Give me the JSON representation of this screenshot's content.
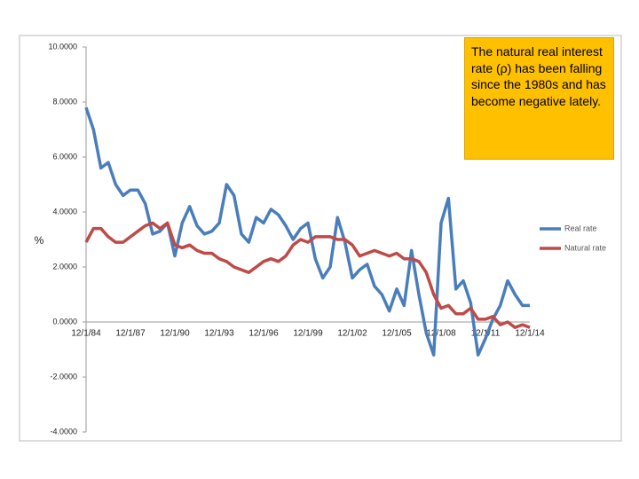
{
  "chart_data": {
    "type": "line",
    "annotation": "The natural real interest rate (ρ) has been falling since the 1980s and has become negative lately.",
    "y_label": "%",
    "categories": [
      "12/1/84",
      null,
      null,
      null,
      null,
      null,
      "12/1/87",
      null,
      null,
      null,
      null,
      null,
      "12/1/90",
      null,
      null,
      null,
      null,
      null,
      "12/1/93",
      null,
      null,
      null,
      null,
      null,
      "12/1/96",
      null,
      null,
      null,
      null,
      null,
      "12/1/99",
      null,
      null,
      null,
      null,
      null,
      "12/1/02",
      null,
      null,
      null,
      null,
      null,
      "12/1/05",
      null,
      null,
      null,
      null,
      null,
      "12/1/08",
      null,
      null,
      null,
      null,
      null,
      "12/1/11",
      null,
      null,
      null,
      null,
      null,
      "12/1/14"
    ],
    "series": [
      {
        "name": "Real rate",
        "color": "#4a7ebb",
        "values": [
          7.8,
          7.0,
          5.6,
          5.8,
          5.0,
          4.6,
          4.8,
          4.8,
          4.3,
          3.2,
          3.3,
          3.6,
          2.4,
          3.6,
          4.2,
          3.5,
          3.2,
          3.3,
          3.6,
          5.0,
          4.6,
          3.2,
          2.9,
          3.8,
          3.6,
          4.1,
          3.9,
          3.5,
          3.0,
          3.4,
          3.6,
          2.3,
          1.6,
          2.0,
          3.8,
          2.9,
          1.6,
          1.9,
          2.1,
          1.3,
          1.0,
          0.4,
          1.2,
          0.6,
          2.6,
          1.0,
          -0.4,
          -1.2,
          3.6,
          4.5,
          1.2,
          1.5,
          0.7,
          -1.2,
          -0.6,
          0.1,
          0.6,
          1.5,
          1.0,
          0.6,
          0.6
        ]
      },
      {
        "name": "Natural rate",
        "color": "#be4b48",
        "values": [
          2.9,
          3.4,
          3.4,
          3.1,
          2.9,
          2.9,
          3.1,
          3.3,
          3.5,
          3.6,
          3.4,
          3.6,
          2.8,
          2.7,
          2.8,
          2.6,
          2.5,
          2.5,
          2.3,
          2.2,
          2.0,
          1.9,
          1.8,
          2.0,
          2.2,
          2.3,
          2.2,
          2.4,
          2.8,
          3.0,
          2.9,
          3.1,
          3.1,
          3.1,
          3.0,
          3.0,
          2.8,
          2.4,
          2.5,
          2.6,
          2.5,
          2.4,
          2.5,
          2.3,
          2.3,
          2.2,
          1.8,
          1.0,
          0.5,
          0.6,
          0.3,
          0.3,
          0.5,
          0.1,
          0.1,
          0.2,
          -0.1,
          0.0,
          -0.2,
          -0.1,
          -0.2
        ]
      }
    ],
    "ylim": [
      -4,
      10
    ],
    "yticks": [
      {
        "value": 10,
        "label": "10.0000"
      },
      {
        "value": 8,
        "label": "8.0000"
      },
      {
        "value": 6,
        "label": "6.0000"
      },
      {
        "value": 4,
        "label": "4.0000"
      },
      {
        "value": 2,
        "label": "2.0000"
      },
      {
        "value": 0,
        "label": "0.0000"
      },
      {
        "value": -2,
        "label": "-2.0000"
      },
      {
        "value": -4,
        "label": "-4.0000"
      }
    ],
    "legend": "right"
  }
}
